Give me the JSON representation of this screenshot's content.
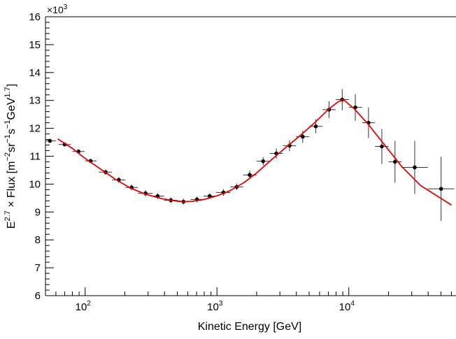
{
  "chart_data": {
    "type": "scatter",
    "title": "",
    "xlabel": "Kinetic Energy [GeV]",
    "ylabel_parts": [
      "E",
      "2.7",
      " × Flux [m",
      "−2",
      "sr",
      "−1",
      "s",
      "−1",
      "GeV",
      "1.7",
      "]"
    ],
    "y_multiplier_label": "×10",
    "y_multiplier_exp": "3",
    "x_scale": "log",
    "xlim": [
      50,
      65000
    ],
    "ylim": [
      6,
      16
    ],
    "x_major_ticks": [
      100,
      1000,
      10000
    ],
    "x_major_tick_labels": [
      [
        "10",
        "2"
      ],
      [
        "10",
        "3"
      ],
      [
        "10",
        "4"
      ]
    ],
    "y_ticks": [
      6,
      7,
      8,
      9,
      10,
      11,
      12,
      13,
      14,
      15,
      16
    ],
    "y_tick_labels": [
      "6",
      "7",
      "8",
      "9",
      "10",
      "11",
      "12",
      "13",
      "14",
      "15",
      "16"
    ],
    "grid": false,
    "series": [
      {
        "marker_color": "#000000",
        "points": [
          {
            "x": 54,
            "y": 11.55,
            "xerr": [
              50,
              60
            ],
            "yerr": 0.03
          },
          {
            "x": 70,
            "y": 11.42,
            "xerr": [
              63,
              78
            ],
            "yerr": 0.06
          },
          {
            "x": 89,
            "y": 11.17,
            "xerr": [
              80,
              99
            ],
            "yerr": 0.06
          },
          {
            "x": 110,
            "y": 10.83,
            "xerr": [
              100,
              122
            ],
            "yerr": 0.08
          },
          {
            "x": 143,
            "y": 10.43,
            "xerr": [
              127,
              160
            ],
            "yerr": 0.1
          },
          {
            "x": 180,
            "y": 10.15,
            "xerr": [
              160,
              202
            ],
            "yerr": 0.1
          },
          {
            "x": 225,
            "y": 9.88,
            "xerr": [
              202,
              251
            ],
            "yerr": 0.1
          },
          {
            "x": 287,
            "y": 9.67,
            "xerr": [
              251,
              325
            ],
            "yerr": 0.12
          },
          {
            "x": 355,
            "y": 9.57,
            "xerr": [
              325,
              398
            ],
            "yerr": 0.1
          },
          {
            "x": 447,
            "y": 9.42,
            "xerr": [
              398,
              500
            ],
            "yerr": 0.1
          },
          {
            "x": 557,
            "y": 9.37,
            "xerr": [
              500,
              630
            ],
            "yerr": 0.1
          },
          {
            "x": 705,
            "y": 9.45,
            "xerr": [
              630,
              790
            ],
            "yerr": 0.1
          },
          {
            "x": 880,
            "y": 9.57,
            "xerr": [
              790,
              985
            ],
            "yerr": 0.1
          },
          {
            "x": 1120,
            "y": 9.7,
            "xerr": [
              985,
              1260
            ],
            "yerr": 0.12
          },
          {
            "x": 1410,
            "y": 9.9,
            "xerr": [
              1260,
              1580
            ],
            "yerr": 0.12
          },
          {
            "x": 1770,
            "y": 10.33,
            "xerr": [
              1580,
              2000
            ],
            "yerr": 0.15
          },
          {
            "x": 2240,
            "y": 10.82,
            "xerr": [
              2000,
              2510
            ],
            "yerr": 0.15
          },
          {
            "x": 2820,
            "y": 11.1,
            "xerr": [
              2510,
              3160
            ],
            "yerr": 0.18
          },
          {
            "x": 3550,
            "y": 11.38,
            "xerr": [
              3160,
              3980
            ],
            "yerr": 0.2
          },
          {
            "x": 4470,
            "y": 11.7,
            "xerr": [
              3980,
              5010
            ],
            "yerr": 0.22
          },
          {
            "x": 5620,
            "y": 12.07,
            "xerr": [
              5010,
              6310
            ],
            "yerr": 0.25
          },
          {
            "x": 7080,
            "y": 12.67,
            "xerr": [
              6310,
              7940
            ],
            "yerr": 0.3
          },
          {
            "x": 8910,
            "y": 13.03,
            "xerr": [
              7940,
              10000
            ],
            "yerr": 0.38
          },
          {
            "x": 11200,
            "y": 12.75,
            "xerr": [
              10000,
              12600
            ],
            "yerr": 0.48
          },
          {
            "x": 14100,
            "y": 12.2,
            "xerr": [
              12600,
              15800
            ],
            "yerr": 0.55
          },
          {
            "x": 17800,
            "y": 11.35,
            "xerr": [
              15800,
              20000
            ],
            "yerr": 0.63
          },
          {
            "x": 22400,
            "y": 10.8,
            "xerr": [
              20000,
              25100
            ],
            "yerr": 0.75
          },
          {
            "x": 31600,
            "y": 10.6,
            "xerr": [
              25100,
              39800
            ],
            "yerr": 0.95
          },
          {
            "x": 50100,
            "y": 9.83,
            "xerr": [
              39800,
              63100
            ],
            "yerr": 1.15
          }
        ]
      }
    ],
    "fit_curve": {
      "color": "#ee0000",
      "points": [
        [
          62,
          11.62
        ],
        [
          80,
          11.28
        ],
        [
          100,
          10.92
        ],
        [
          130,
          10.55
        ],
        [
          170,
          10.17
        ],
        [
          220,
          9.86
        ],
        [
          290,
          9.63
        ],
        [
          380,
          9.48
        ],
        [
          480,
          9.4
        ],
        [
          560,
          9.37
        ],
        [
          650,
          9.38
        ],
        [
          800,
          9.45
        ],
        [
          1000,
          9.58
        ],
        [
          1250,
          9.76
        ],
        [
          1600,
          10.05
        ],
        [
          2000,
          10.4
        ],
        [
          2600,
          10.88
        ],
        [
          3300,
          11.3
        ],
        [
          4300,
          11.75
        ],
        [
          5500,
          12.2
        ],
        [
          7000,
          12.68
        ],
        [
          8300,
          12.95
        ],
        [
          9100,
          13.03
        ],
        [
          11000,
          12.7
        ],
        [
          14000,
          12.15
        ],
        [
          18000,
          11.5
        ],
        [
          25000,
          10.65
        ],
        [
          35000,
          9.95
        ],
        [
          60000,
          9.25
        ]
      ]
    }
  }
}
